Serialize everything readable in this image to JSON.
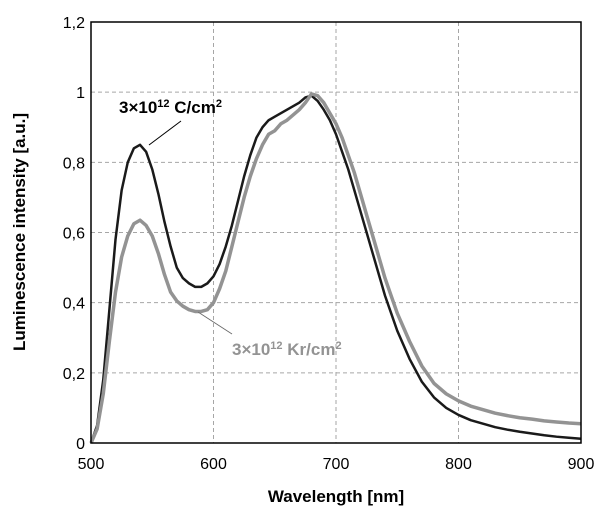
{
  "chart_data": {
    "type": "line",
    "title": "",
    "xlabel": "Wavelength [nm]",
    "ylabel": "Luminescence intensity [a.u.]",
    "xlim": [
      500,
      900
    ],
    "ylim": [
      0,
      1.2
    ],
    "xticks": [
      500,
      600,
      700,
      800,
      900
    ],
    "xtick_labels": [
      "500",
      "600",
      "700",
      "800",
      "900"
    ],
    "yticks": [
      0,
      0.2,
      0.4,
      0.6,
      0.8,
      1.0,
      1.2
    ],
    "ytick_labels": [
      "0",
      "0,2",
      "0,4",
      "0,6",
      "0,8",
      "1",
      "1,2"
    ],
    "grid": true,
    "legend": "none",
    "series": [
      {
        "color": "#1a1a1a",
        "x": [
          500,
          505,
          510,
          515,
          520,
          525,
          530,
          535,
          540,
          545,
          550,
          555,
          560,
          565,
          570,
          575,
          580,
          585,
          590,
          595,
          600,
          605,
          610,
          615,
          620,
          625,
          630,
          635,
          640,
          645,
          650,
          655,
          660,
          665,
          670,
          675,
          680,
          685,
          690,
          695,
          700,
          705,
          710,
          715,
          720,
          725,
          730,
          735,
          740,
          745,
          750,
          760,
          770,
          780,
          790,
          800,
          810,
          820,
          830,
          840,
          850,
          860,
          870,
          880,
          890,
          900
        ],
        "y": [
          0.0,
          0.05,
          0.18,
          0.38,
          0.58,
          0.72,
          0.8,
          0.84,
          0.85,
          0.83,
          0.78,
          0.71,
          0.63,
          0.56,
          0.5,
          0.47,
          0.455,
          0.445,
          0.445,
          0.455,
          0.475,
          0.51,
          0.56,
          0.62,
          0.69,
          0.76,
          0.82,
          0.87,
          0.9,
          0.92,
          0.93,
          0.94,
          0.95,
          0.96,
          0.97,
          0.985,
          0.99,
          0.975,
          0.95,
          0.92,
          0.88,
          0.83,
          0.78,
          0.72,
          0.66,
          0.6,
          0.54,
          0.48,
          0.42,
          0.37,
          0.32,
          0.24,
          0.175,
          0.13,
          0.1,
          0.08,
          0.065,
          0.055,
          0.045,
          0.038,
          0.032,
          0.027,
          0.022,
          0.018,
          0.015,
          0.012
        ]
      },
      {
        "color": "#939393",
        "x": [
          500,
          505,
          510,
          515,
          520,
          525,
          530,
          535,
          540,
          545,
          550,
          555,
          560,
          565,
          570,
          575,
          580,
          585,
          590,
          595,
          600,
          605,
          610,
          615,
          620,
          625,
          630,
          635,
          640,
          645,
          650,
          655,
          660,
          665,
          670,
          675,
          680,
          685,
          690,
          695,
          700,
          705,
          710,
          715,
          720,
          725,
          730,
          735,
          740,
          745,
          750,
          760,
          770,
          780,
          790,
          800,
          810,
          820,
          830,
          840,
          850,
          860,
          870,
          880,
          890,
          900
        ],
        "y": [
          0.0,
          0.04,
          0.14,
          0.29,
          0.43,
          0.53,
          0.59,
          0.625,
          0.635,
          0.62,
          0.59,
          0.54,
          0.48,
          0.43,
          0.405,
          0.39,
          0.38,
          0.375,
          0.375,
          0.38,
          0.4,
          0.44,
          0.49,
          0.56,
          0.63,
          0.7,
          0.76,
          0.81,
          0.85,
          0.88,
          0.89,
          0.91,
          0.92,
          0.935,
          0.95,
          0.97,
          0.995,
          0.99,
          0.97,
          0.94,
          0.91,
          0.87,
          0.82,
          0.77,
          0.71,
          0.65,
          0.59,
          0.53,
          0.47,
          0.42,
          0.37,
          0.29,
          0.22,
          0.17,
          0.14,
          0.12,
          0.105,
          0.095,
          0.085,
          0.078,
          0.072,
          0.068,
          0.063,
          0.06,
          0.057,
          0.055
        ]
      }
    ],
    "annotations": [
      {
        "text": "3×10",
        "sup": "12",
        "tail": " C/cm",
        "sup2": "2",
        "color": "#000000",
        "target_x": 540,
        "target_y": 0.85
      },
      {
        "text": "3×10",
        "sup": "12",
        "tail": " Kr/cm",
        "sup2": "2",
        "color": "#939393",
        "target_x": 593,
        "target_y": 0.375
      }
    ]
  }
}
